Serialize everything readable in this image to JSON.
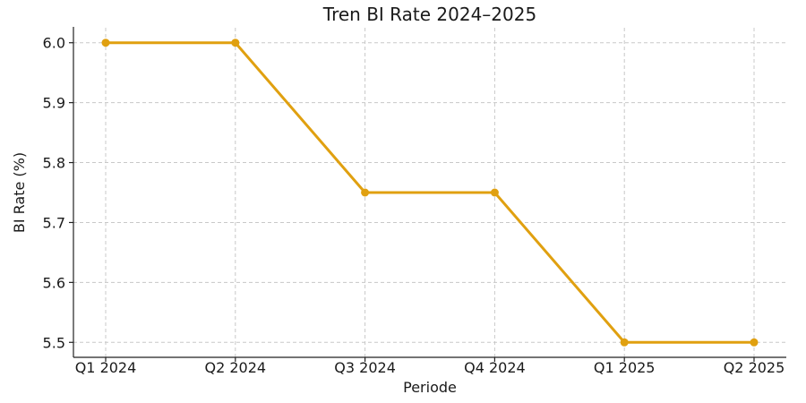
{
  "chart_data": {
    "type": "line",
    "title": "Tren BI Rate 2024–2025",
    "xlabel": "Periode",
    "ylabel": "BI Rate (%)",
    "categories": [
      "Q1 2024",
      "Q2 2024",
      "Q3 2024",
      "Q4 2024",
      "Q1 2025",
      "Q2 2025"
    ],
    "series": [
      {
        "values": [
          6.0,
          6.0,
          5.75,
          5.75,
          5.5,
          5.5
        ]
      }
    ],
    "ylim": [
      5.475,
      6.025
    ],
    "yticks": [
      "5.5",
      "5.6",
      "5.7",
      "5.8",
      "5.9",
      "6.0"
    ],
    "grid": true,
    "line_color": "#e0a010"
  }
}
